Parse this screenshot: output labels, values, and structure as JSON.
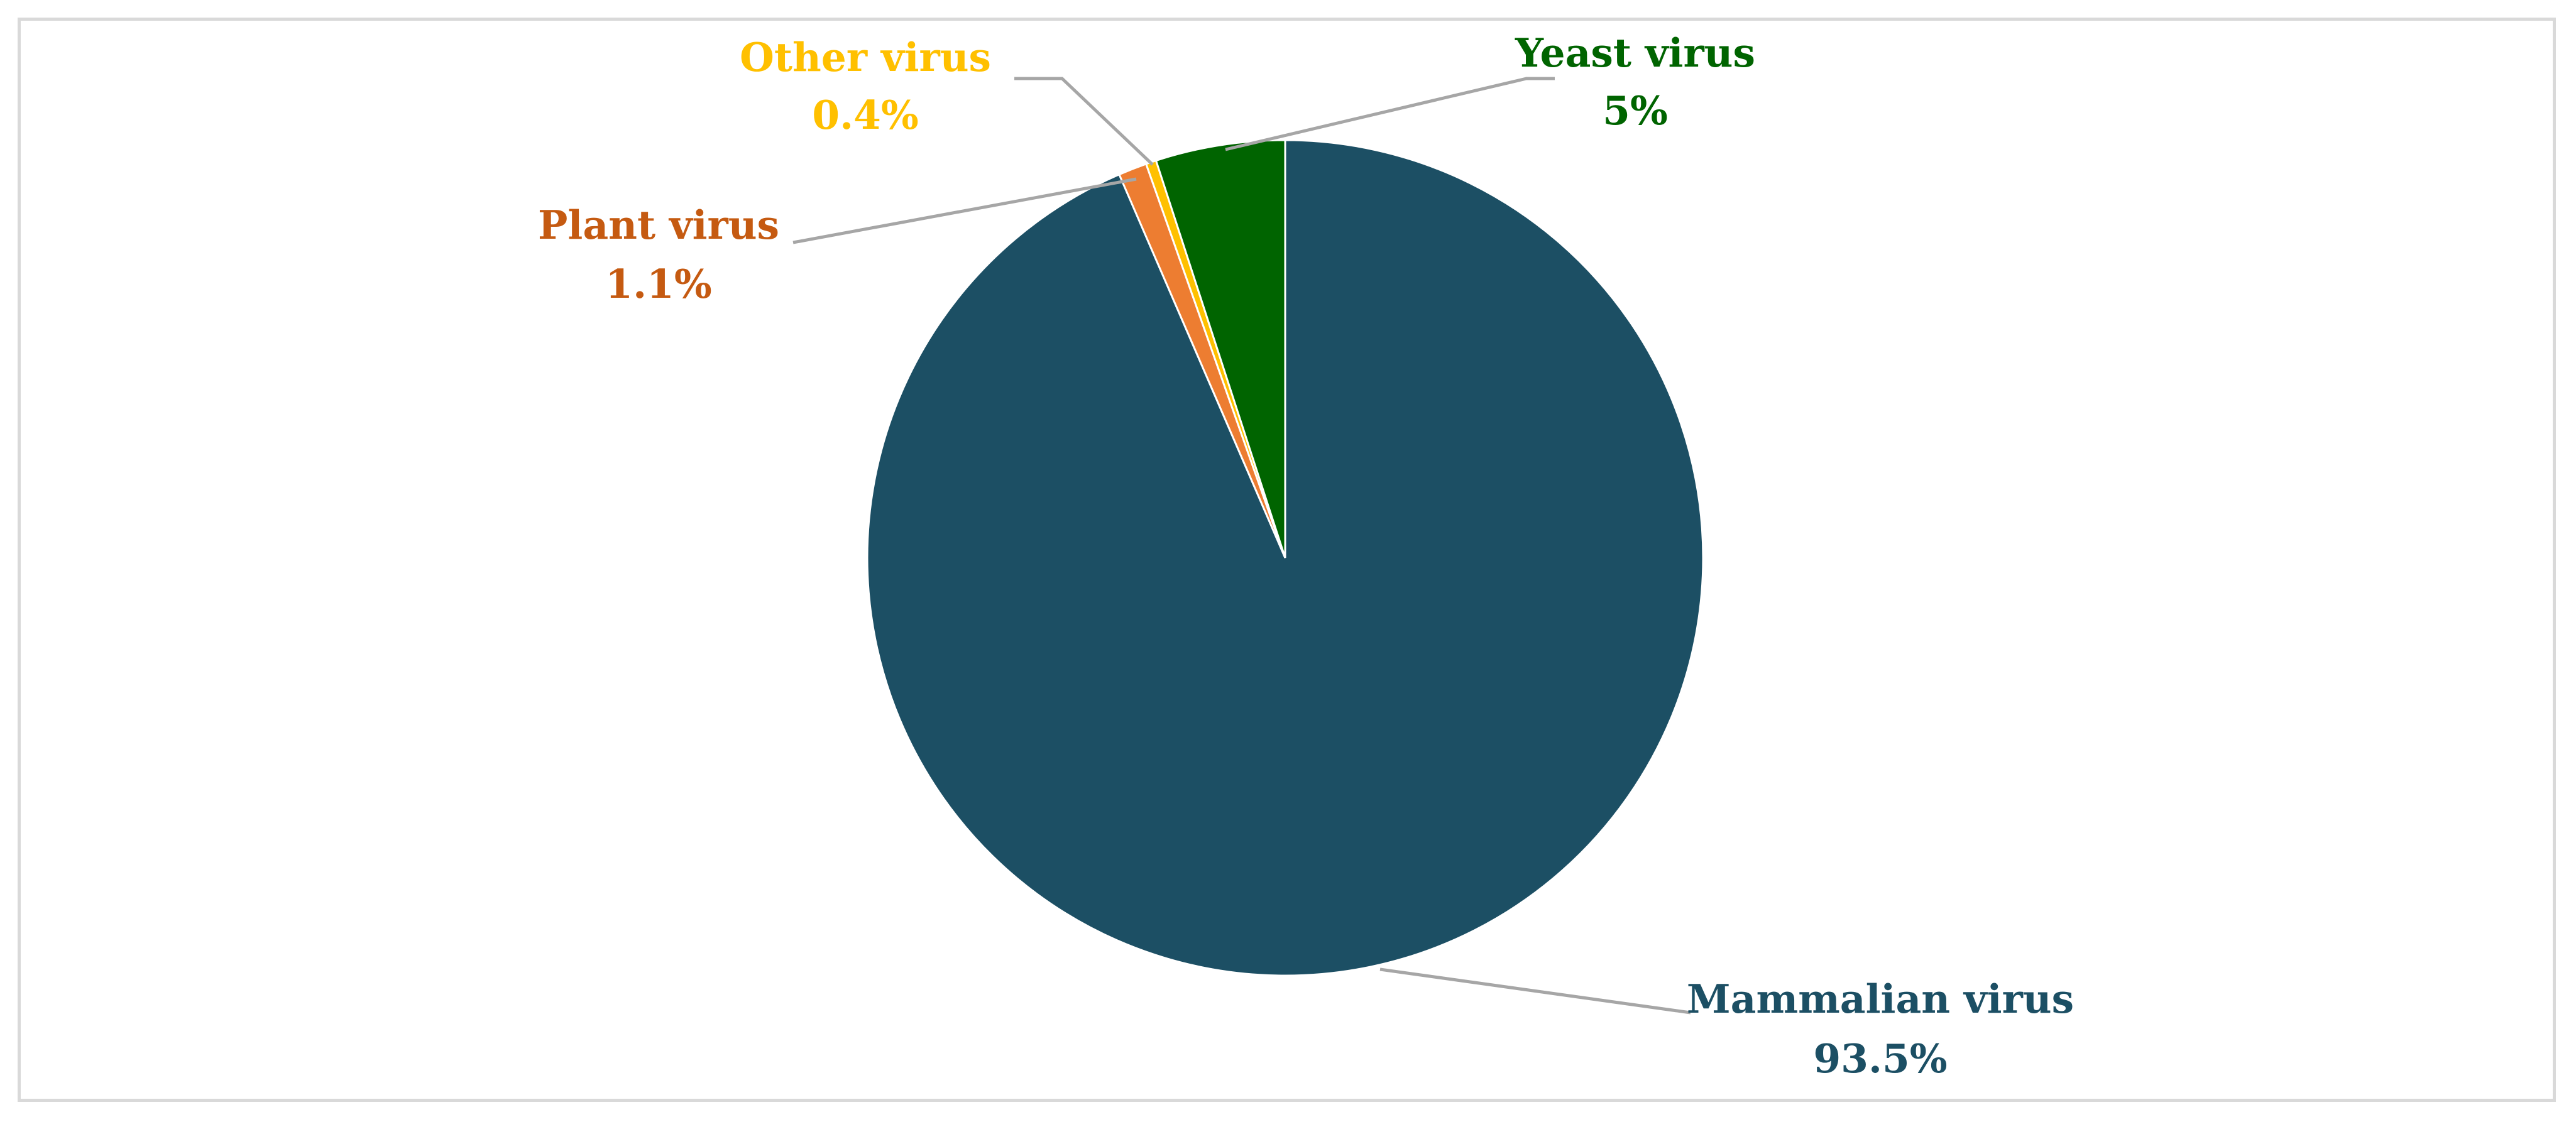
{
  "chart_data": {
    "type": "pie",
    "slices": [
      {
        "name": "Mammalian virus",
        "value_label": "93.5%",
        "value": 93.5,
        "color": "#1c4f64"
      },
      {
        "name": "Plant virus",
        "value_label": "1.1%",
        "value": 1.1,
        "color": "#ed7d31"
      },
      {
        "name": "Other virus",
        "value_label": "0.4%",
        "value": 0.4,
        "color": "#ffc000"
      },
      {
        "name": "Yeast virus",
        "value_label": "5%",
        "value": 5,
        "color": "#006400"
      }
    ],
    "label_colors": {
      "Mammalian virus": "#1c4f64",
      "Plant virus": "#c55a11",
      "Other virus": "#ffc000",
      "Yeast virus": "#006400"
    },
    "leader_line_color": "#a6a6a6"
  }
}
